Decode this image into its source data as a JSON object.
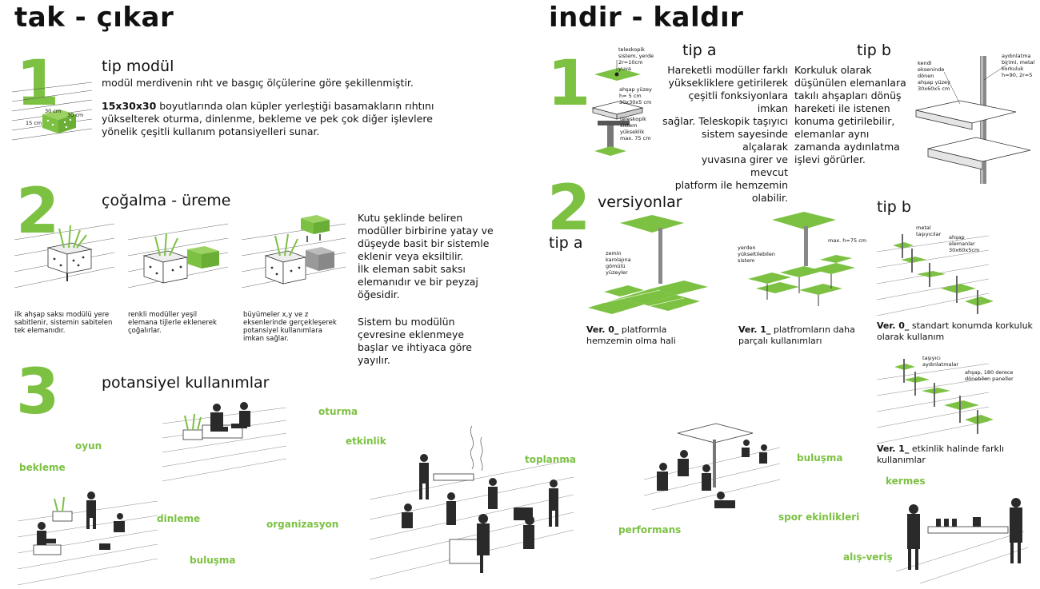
{
  "left": {
    "title": "tak - çıkar",
    "s1": {
      "number": "1",
      "subtitle": "tip modül",
      "line1": "modül merdivenin rıht ve basgıç ölçülerine göre şekillenmiştir.",
      "bold": "15x30x30",
      "line2": " boyutlarında olan küpler yerleştiği basamakların rıhtını",
      "line3": "yükselterek oturma, dinlenme, bekleme ve pek çok diğer işlevlere",
      "line4": "yönelik çeşitli kullanım potansiyelleri sunar.",
      "dims": [
        "30 cm",
        "15 cm",
        "30 cm"
      ]
    },
    "s2": {
      "number": "2",
      "subtitle": "çoğalma - üreme",
      "cap1": [
        "ilk ahşap saksı modülü yere",
        "sabitlenir, sistemin sabitelen",
        "tek elemanıdır."
      ],
      "cap2": [
        "renkli modüller yeşil",
        "elemana tijlerle eklenerek",
        "çoğalırlar."
      ],
      "cap3": [
        "büyümeler x,y ve z",
        "eksenlerinde gerçekleşerek",
        "potansiyel kullanımlara",
        "imkan sağlar."
      ],
      "para1": [
        "Kutu şeklinde beliren",
        "modüller birbirine yatay ve",
        "düşeyde basit bir sistemle",
        "eklenir veya eksiltilir.",
        "İlk eleman sabit saksı",
        "elemanıdır ve bir peyzaj",
        "öğesidir."
      ],
      "para2": [
        "Sistem bu modülün",
        "çevresine eklenmeye",
        "başlar ve ihtiyaca göre",
        "yayılır."
      ]
    },
    "s3": {
      "number": "3",
      "subtitle": "potansiyel kullanımlar",
      "labels": {
        "oyun": "oyun",
        "bekleme": "bekleme",
        "oturma": "oturma",
        "etkinlik": "etkinlik",
        "toplanma": "toplanma",
        "dinleme": "dinleme",
        "organizasyon": "organizasyon",
        "bulusma": "buluşma"
      }
    }
  },
  "right": {
    "title": "indir - kaldır",
    "s1": {
      "number": "1",
      "tipa": "tip a",
      "tipb": "tip b",
      "tipa_text": [
        "Hareketli modüller farklı",
        "yüksekliklere getirilerek",
        "çeşitli fonksiyonlara imkan",
        "sağlar. Teleskopik taşıyıcı",
        "sistem sayesinde alçalarak",
        "yuvasına girer ve mevcut",
        "platform ile hemzemin",
        "olabilir."
      ],
      "tipb_text": [
        "Korkuluk olarak",
        "düşünülen elemanlara",
        "takılı ahşapları dönüş",
        "hareketi ile istenen",
        "konuma getirilebilir,",
        "elemanlar aynı",
        "zamanda aydınlatma",
        "işlevi görürler."
      ],
      "ann_a1": [
        "teleskopik",
        "sistem, yerde",
        "2r=10cm",
        "yuva"
      ],
      "ann_a2": [
        "ahşap yüzey",
        "h= 5 cm",
        "30x30x5 cm"
      ],
      "ann_a3": [
        "teleskopik",
        "sistem",
        "yükseklik",
        "max. 75 cm"
      ],
      "ann_b1": [
        "kendi",
        "ekseninde",
        "dönen",
        "ahşap yüzey",
        "30x60x5 cm"
      ],
      "ann_b2": [
        "aydınlatma",
        "birimi, metal",
        "korkuluk",
        "h=90, 2r=5"
      ]
    },
    "s2": {
      "number": "2",
      "subtitle": "versiyonlar",
      "tipa": "tip a",
      "tipb": "tip b",
      "ann_zemin": [
        "zemin",
        "karolajına",
        "gömülü",
        "yüzeyler"
      ],
      "ann_yerden": [
        "yerden",
        "yükseltilebilen",
        "sistem"
      ],
      "ann_max": "max. h=75 cm",
      "ann_metal": [
        "metal",
        "taşıyıcılar"
      ],
      "ann_ahsap": [
        "ahşap",
        "elemanlar",
        "30x60x5cm"
      ],
      "ann_tasiyici": [
        "taşıyıcı",
        "aydınlatmalar"
      ],
      "ann_180": [
        "ahşap, 180 derece",
        "dönebilen paneller"
      ],
      "v0a_bold": "Ver. 0_",
      "v0a_text": " platformla",
      "v0a_line2": "hemzemin olma hali",
      "v1a_bold": "Ver. 1_",
      "v1a_text": " platfromların daha",
      "v1a_line2": "parçalı kullanımları",
      "v0b_bold": "Ver. 0_",
      "v0b_text": " standart konumda korkuluk",
      "v0b_line2": "olarak kullanım",
      "v1b_bold": "Ver. 1_",
      "v1b_text": " etkinlik halinde farklı",
      "v1b_line2": "kullanımlar"
    },
    "s3": {
      "labels": {
        "bulusma": "buluşma",
        "kermes": "kermes",
        "performans": "performans",
        "spor": "spor ekinlikleri",
        "alisveris": "alış-veriş"
      }
    }
  },
  "colors": {
    "accent": "#7cc142",
    "dark": "#2a2a2a",
    "grey": "#9a9a9a"
  }
}
